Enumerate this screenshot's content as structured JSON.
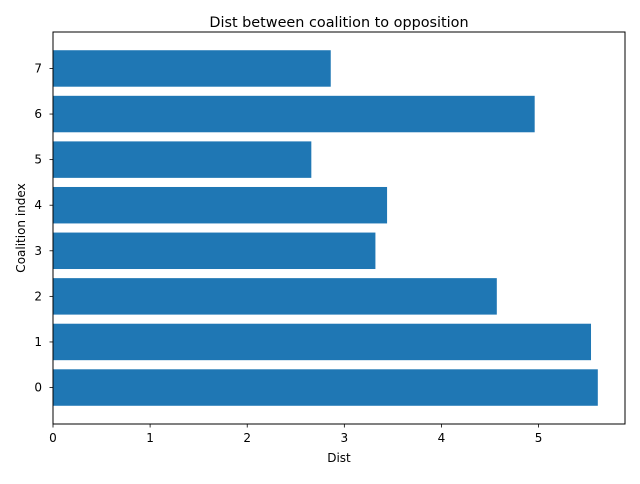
{
  "chart_data": {
    "type": "bar",
    "orientation": "horizontal",
    "title": "Dist between coalition to opposition",
    "xlabel": "Dist",
    "ylabel": "Coalition index",
    "categories": [
      "0",
      "1",
      "2",
      "3",
      "4",
      "5",
      "6",
      "7"
    ],
    "values": [
      5.61,
      5.54,
      4.57,
      3.32,
      3.44,
      2.66,
      4.96,
      2.86
    ],
    "x_ticks": [
      "0",
      "1",
      "2",
      "3",
      "4",
      "5"
    ],
    "xlim": [
      0,
      5.89
    ],
    "ylim": [
      -0.8,
      7.8
    ],
    "grid": false,
    "bar_color": "#1f77b4"
  }
}
